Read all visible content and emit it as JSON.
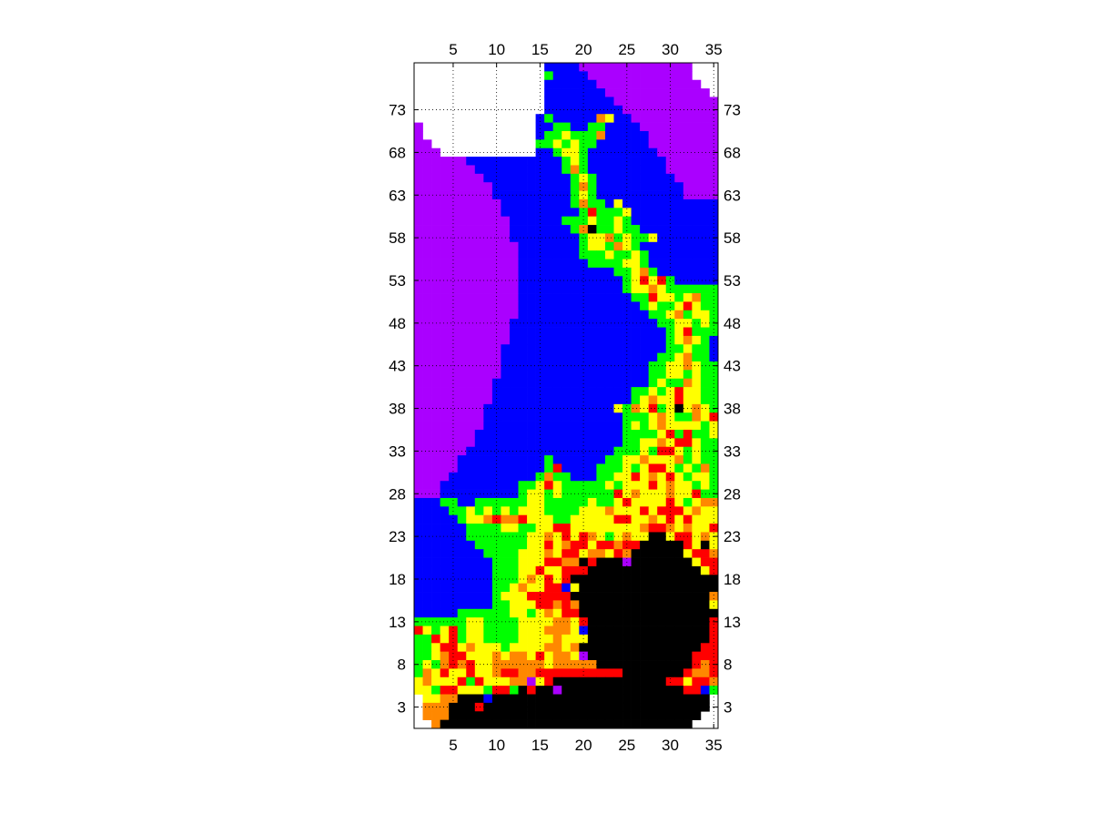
{
  "chart_data": {
    "type": "heatmap",
    "title": "",
    "xlabel": "",
    "ylabel": "",
    "xlim": [
      0.5,
      35.5
    ],
    "ylim": [
      0.5,
      78.5
    ],
    "x_ticks": [
      5,
      10,
      15,
      20,
      25,
      30,
      35
    ],
    "y_ticks": [
      3,
      8,
      13,
      18,
      23,
      28,
      33,
      38,
      43,
      48,
      53,
      58,
      63,
      68,
      73
    ],
    "x_tick_labels": [
      "5",
      "10",
      "15",
      "20",
      "25",
      "30",
      "35"
    ],
    "y_tick_labels": [
      "3",
      "8",
      "13",
      "18",
      "23",
      "28",
      "33",
      "38",
      "43",
      "48",
      "53",
      "58",
      "63",
      "68",
      "73"
    ],
    "grid": true,
    "grid_style": "dotted",
    "ticks_on": "all four sides",
    "cols": 35,
    "rows": 78,
    "colors": {
      "W": "#ffffff",
      "P": "#aa00ff",
      "B": "#0000ff",
      "G": "#00ff00",
      "Y": "#ffff00",
      "O": "#ff8800",
      "R": "#ff0000",
      "K": "#000000"
    },
    "grid_rows_top_to_bottom": [
      "WWWWWWWWWWWWWWWBBBBPPPPPPPPPPPPPWWW",
      "WWWWWWWWWWWWWWWGBBBBPPPPPPPPPPPPWWW",
      "WWWWWWWWWWWWWWWBBBBBBPPPPPPPPPPPPWW",
      "WWWWWWWWWWWWWWWBBBBBBBPPPPPPPPPPPPW",
      "WWWWWWWWWWWWWWWBBBBBBBBPPPPPPPPPPPP",
      "WWWWWWWWWWWWWWWBBBBBBBBBPPPPPPPPPPP",
      "WWWWWWWWWWWWWWBGBBBBBOYBBPPPPPPPPPP",
      "PWWWWWWWWWWWWWBBGGBBGGBBBBPPPPPPPPP",
      "PWWWWWWWWWWWWWBGGYGGGOBBBBBPPPPPPPP",
      "PPWWWWWWWWWWWWGGYGYGGBBBBBBPPPPPPPP",
      "PPPWWWWWWWWWWWBBGYYGBBBBBBBBPPPPPPP",
      "PPPPPPBBBBBBBBBBBGYGBBBBBBBBBPPPPPP",
      "PPPPPPPBBBBBBBBBBGOGBBBBBBBBBPPPPPP",
      "PPPPPPPPBBBBBBBBBBGYGBBBBBBBBBPPPPP",
      "PPPPPPPPPBBBBBBBBBGOGBBBBBBBBBBPPPP",
      "PPPPPPPPPBBBBBBBBBGYGBBBBBBBBBBPPPP",
      "PPPPPPPPPPBBBBBBBBGOGGBYBBBBBBBBBBB",
      "PPPPPPPPPPBBBBBBBBBGRGGGYBBBBBBBBBB",
      "PPPPPPPPPPPBBBBBBGGGYGGYGBBBBBBBBBB",
      "PPPPPPPPPPPBBBBBBBGOKGGYGGBBBBBBBBB",
      "PPPPPPPPPPPBBBBBBBBGYYOGYGGYBBBBBBB",
      "PPPPPPPPPPPPBBBBBBBGYYGOYGBBBBBBBBB",
      "PPPPPPPPPPPPBBBBBBBGGGYGGYGBBBBBBBB",
      "PPPPPPPPPPPPBBBBBBBBGGGGYYGBBBBBBBB",
      "PPPPPPPPPPPPBBBBBBBBBBBGGYOGBBBBBBB",
      "PPPPPPPPPPPPBBBBBBBBBBBBGYRYRGBBBBB",
      "PPPPPPPPPPPPBBBBBBBBBBBBGYYOYGGGGGG",
      "PPPPPPPPPPPPBBBBBBBBBBBBBGGRYYGYOGG",
      "PPPPPPPPPPPPBBBBBBBBBBBBBBGYGGYRYGG",
      "PPPPPPPPPPPPBBBBBBBBBBBBBBBGGYOGYYG",
      "PPPPPPPPPPPBBBBBBBBBBBBBBBBBGGYYGYG",
      "PPPPPPPPPPPBBBBBBBBBBBBBBBBBBGYRGGG",
      "PPPPPPPPPPPBBBBBBBBBBBBBBBBBBGYOYGB",
      "PPPPPPPPPPBBBBBBBBBBBBBBBBBBBGGYGGB",
      "PPPPPPPPPPBBBBBBBBBBBBBBBBBBGGYOGGB",
      "PPPPPPPPPPBBBBBBBBBBBBBBBBBGGYYOYGG",
      "PPPPPPPPPPBBBBBBBBBBBBBBBBBGGYYGYGG",
      "PPPPPPPPPBBBBBBBBBBBBBBBBBBGYGGOYGG",
      "PPPPPPPPPBBBBBBBBBBBBBBBBGGYGYRYYGG",
      "PPPPPPPPPBBBBBBBBBBBBBBBBGYOYYRYYGG",
      "PPPPPPPPBBBBBBBBBBBBBBBYGOYRGYKYOYG",
      "PPPPPPPPBBBBBBBBBBBBBBBBGGGYOYGGOYR",
      "PPPPPPPPBBBBBBBBBBBBBBBBGYGYOYYYYGY",
      "PPPPPPPBBBBBBBBBBBBBBBBBGGGGYRGRGGY",
      "PPPPPPPBBBBBBBBBBBBBBBBBGGYYOYRRYGG",
      "PPPPPPBBBBBBBBBBBBBBBBBGGGYGRRYGYGG",
      "PPPPPBBBBBBBBBBGBBBBBBGGYYOYYYOGYGG",
      "PPPPPBBBBBBBBBBGRBBBBGGGYGYRRYGYGOG",
      "PPPPBBBBBBBBBBGOGGBBBGGYYRYOYRYGYYG",
      "PPPBBBBBBBBBGGYRYGGGGGYGYYYRYOYYGYG",
      "PPPBBBBBBBBBGYYGYGGGGGGRYOYYYOYYRGG",
      "BBBGGBBGGGGGGYYGGGGGYGGYRYYYYRYGYOO",
      "BBBBGGYGYGYGYYYGGGGYYYOYYYRYRRRYOYY",
      "BBBBBGYYOROORYYYGGYYYYYRRYYOYRYRYYY",
      "BBBBBBGGGGYYGGYYRRYYYYYYYYORROYOYYR",
      "BBBBBBGGGGGGGYYOYRYROYGYOYYKKYRRYOY",
      "BBBBBBBGGGGGGYYRYORRYRRORRKKKKKRYKY",
      "BBBBBBBBGGGGYYYOYRRYOOYROKKKKKKYRRO",
      "BBBBBBBBBGGGYYYRROOKRKKKPKKKKKKKYRR",
      "BBBBBBBBBGGGYYRYYRRRKKKKKKKKKKKKKYR",
      "BBBBBBBBBGGGYOYRYRKKKKKKKKKKKKKKKKK",
      "BBBBBBBBBGGYOYYRRBYKKKKKKKKKKKKKKKK",
      "BBBBBBBBBGYYYRRRRRKKKKKKKKKKKKKKKKO",
      "BBBBBBBBBGGYYYRROROKKKKKKKKKKKKKKKY",
      "BBBBBGGGGGGYYGYOYRRKKKKKKKKKKKKKKKK",
      "GGGGGGYYGGGGYYYYOOYRKKKKKKKKKKKKKKR",
      "RYGYRGYYGGGGYYYOOOYBKKKKKKKKKKKKKKR",
      "GGRYRGYYGGGGYYYYOYYYKKKKKKKKKKKKKKR",
      "GGYRRYOYYYGYYYYOOYOKKKKKKKKKKKKKKRR",
      "GGYORRYYYOYOOYRYOOYPKKKKKKKKKKKKRRR",
      "GYGORORYYOOOOOOYOOOOOKKKKKKKKKKKROR",
      "GOYRYYRYYORROORRRRRRRRRRKKKKKKKROOR",
      "YOYYYRGRYYYOOPYRKKKKKKKKKKKKKRRYRRO",
      "YYGRRYYYGRRGKRKKPKKKKKKKKKKKKKKRRBG",
      "WYYOOKKKBKKKKKKKKKKKKKKKKKKKKKKKKKW",
      "WOOOKKKRKKKKKKKKKKKKKKKKKKKKKKKKKKW",
      "WOOOKKKKKKKKKKKKKKKKKKKKKKKKKKKKKWW",
      "WWOKKKKKKKKKKKKKKKKKKKKKKKKKKKKKWWW"
    ]
  }
}
